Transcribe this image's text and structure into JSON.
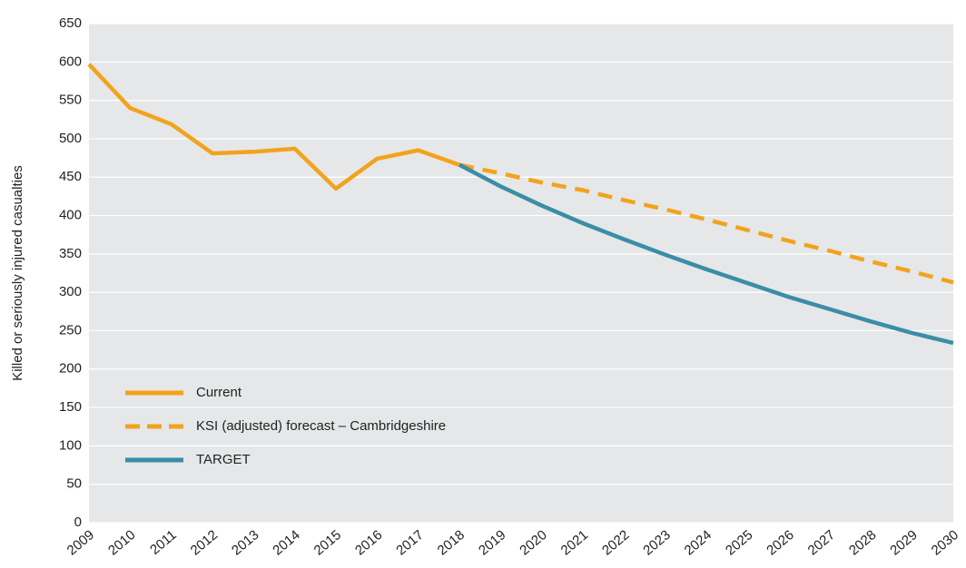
{
  "chart_data": {
    "type": "line",
    "y_label": "Killed or seriously injured casualties",
    "categories": [
      "2009",
      "2010",
      "2011",
      "2012",
      "2013",
      "2014",
      "2015",
      "2016",
      "2017",
      "2018",
      "2019",
      "2020",
      "2021",
      "2022",
      "2023",
      "2024",
      "2025",
      "2026",
      "2027",
      "2028",
      "2029",
      "2030"
    ],
    "series": [
      {
        "name": "Current",
        "color": "#f2a31c",
        "line_style": "solid",
        "values": [
          597,
          540,
          519,
          481,
          483,
          487,
          435,
          474,
          485,
          466,
          null,
          null,
          null,
          null,
          null,
          null,
          null,
          null,
          null,
          null,
          null,
          null
        ]
      },
      {
        "name": "KSI (adjusted) forecast – Cambridgeshire",
        "color": "#f2a31c",
        "line_style": "dashed",
        "values": [
          null,
          null,
          null,
          null,
          null,
          null,
          null,
          null,
          null,
          466,
          455,
          443,
          433,
          420,
          408,
          395,
          381,
          367,
          354,
          340,
          327,
          313
        ]
      },
      {
        "name": "TARGET",
        "color": "#3a8ea6",
        "line_style": "solid",
        "values": [
          null,
          null,
          null,
          null,
          null,
          null,
          null,
          null,
          null,
          466,
          438,
          413,
          390,
          369,
          349,
          330,
          312,
          294,
          278,
          262,
          247,
          234
        ]
      }
    ],
    "ylim": [
      0,
      650
    ],
    "yticks": [
      0,
      50,
      100,
      150,
      200,
      250,
      300,
      350,
      400,
      450,
      500,
      550,
      600,
      650
    ],
    "grid": true,
    "background": "#e6e7e8",
    "legend": "lower left"
  }
}
